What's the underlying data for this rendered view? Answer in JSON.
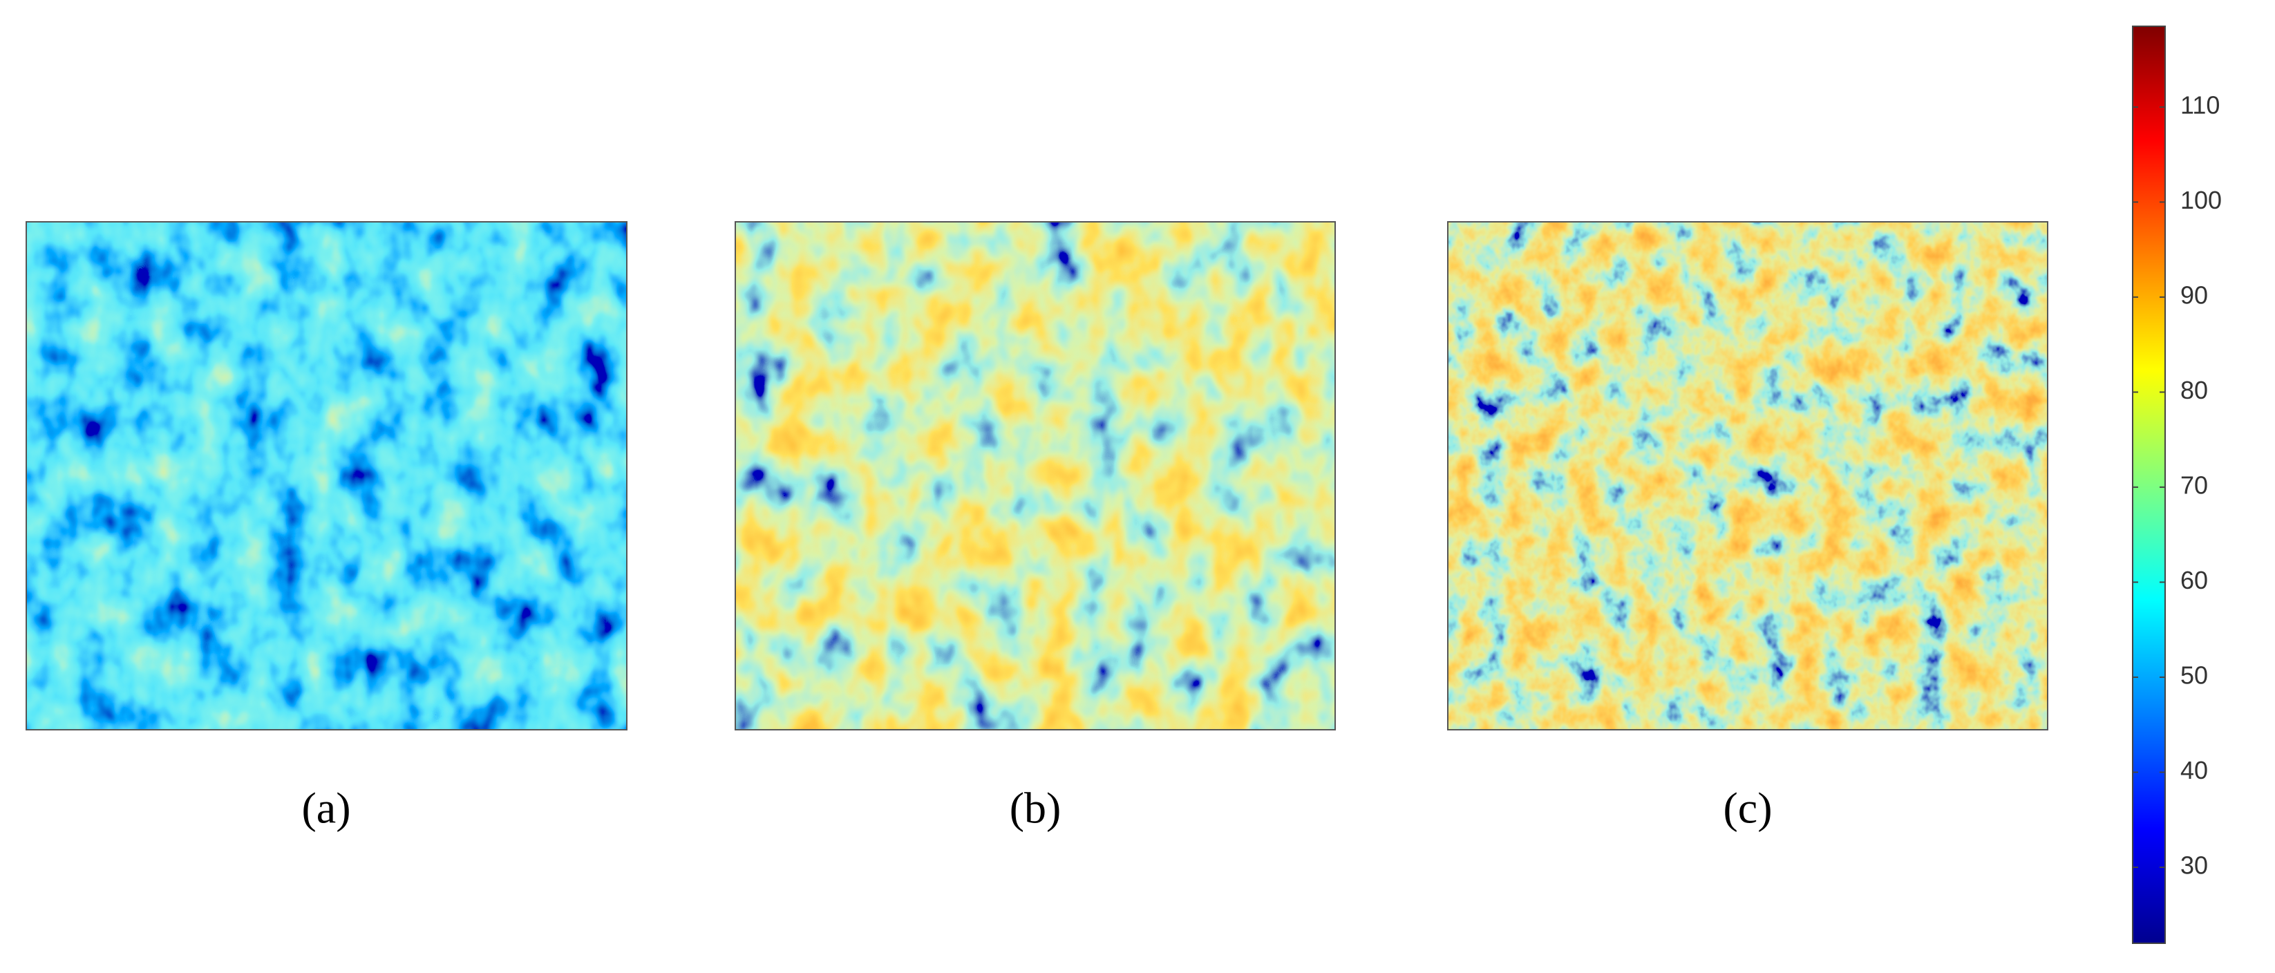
{
  "chart_data": {
    "type": "heatmap",
    "panel_labels": [
      "(a)",
      "(b)",
      "(c)"
    ],
    "colormap": "jet",
    "clim": [
      22,
      118.5
    ],
    "cticks": [
      30,
      40,
      50,
      60,
      70,
      80,
      90,
      100,
      110
    ]
  }
}
